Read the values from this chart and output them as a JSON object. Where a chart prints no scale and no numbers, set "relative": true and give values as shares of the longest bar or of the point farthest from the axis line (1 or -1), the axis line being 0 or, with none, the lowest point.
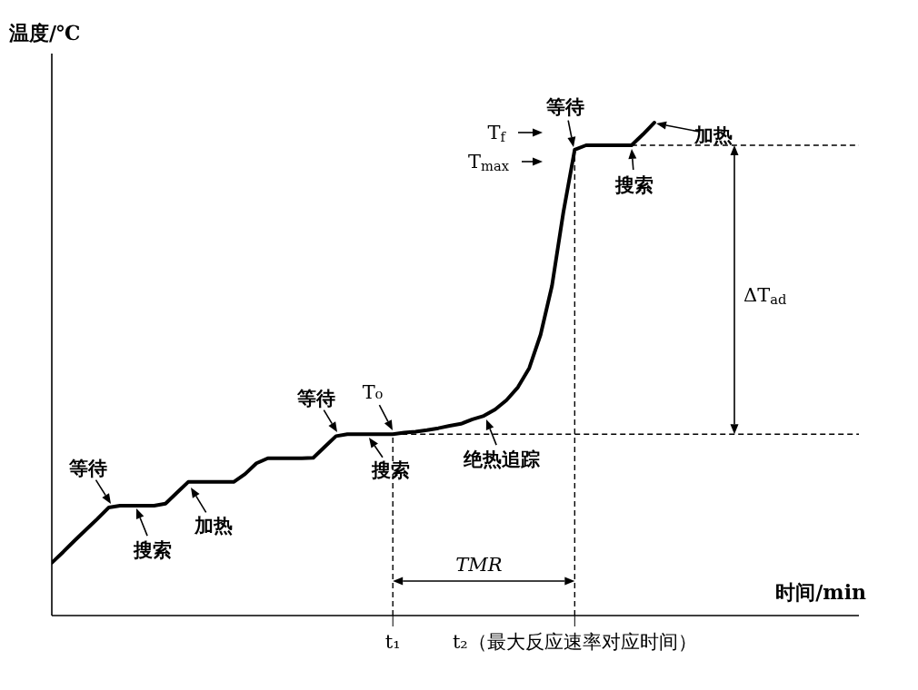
{
  "chart_data": {
    "type": "line",
    "relative": true,
    "ylabel": "温度/℃",
    "xlabel": "时间/min",
    "categories": [
      null,
      null,
      null,
      null,
      null,
      null,
      null,
      null,
      null,
      null,
      null,
      null,
      null,
      null,
      null,
      null,
      null,
      null,
      null,
      null,
      null,
      null,
      null,
      null,
      null,
      null,
      null,
      null,
      null,
      null,
      "t₁",
      null,
      null,
      null,
      null,
      null,
      null,
      null,
      null,
      null,
      null,
      null,
      null,
      null,
      null,
      null,
      "t₂（最大反应速率对应时间）",
      null,
      null,
      null,
      null,
      null,
      null,
      null,
      null,
      null,
      null,
      null,
      null,
      null,
      null,
      null,
      null,
      null,
      null,
      null,
      null,
      null,
      null,
      null,
      null,
      null
    ],
    "series": [
      {
        "color": "#000000",
        "values": [
          0.107,
          0.129,
          0.152,
          0.174,
          0.196,
          0.219,
          0.223,
          0.223,
          0.223,
          0.223,
          0.227,
          0.249,
          0.271,
          0.271,
          0.271,
          0.271,
          0.271,
          0.287,
          0.309,
          0.319,
          0.319,
          0.319,
          0.319,
          0.32,
          0.342,
          0.364,
          0.368,
          0.368,
          0.368,
          0.368,
          0.368,
          0.371,
          0.373,
          0.376,
          0.38,
          0.385,
          0.389,
          0.398,
          0.405,
          0.418,
          0.437,
          0.463,
          0.502,
          0.57,
          0.669,
          0.818,
          0.945,
          0.954,
          0.954,
          0.954,
          0.954,
          0.954,
          0.976,
          1.0,
          null,
          null,
          null,
          null,
          null,
          null,
          null,
          null,
          null,
          null,
          null,
          null,
          null,
          null,
          null,
          null,
          null,
          null
        ]
      }
    ],
    "ref_lines": [
      {
        "axis": "x",
        "value": "t₁",
        "line_style": "dashed"
      },
      {
        "axis": "x",
        "value": "t₂（最大反应速率对应时间）",
        "line_style": "dashed"
      },
      {
        "axis": "y",
        "value": 0.368,
        "line_style": "dashed"
      },
      {
        "axis": "y",
        "value": 0.954,
        "line_style": "dashed"
      }
    ],
    "annotations": [
      "等待",
      "搜索",
      "加热",
      "等待",
      "搜索",
      "T₀",
      "绝热追踪",
      "等待",
      "T$_{f}$",
      "T$_{max}$",
      "搜索",
      "加热",
      "ΔT$_{ad}$",
      "TMR"
    ]
  }
}
